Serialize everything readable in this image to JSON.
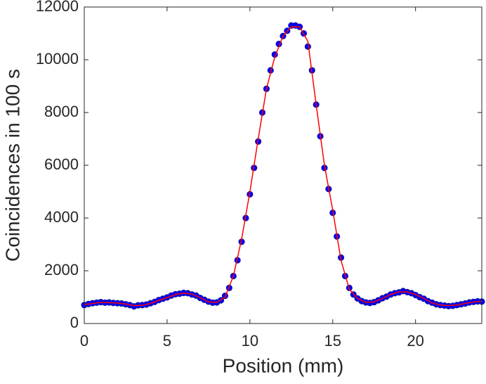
{
  "chart_data": {
    "type": "scatter",
    "xlabel": "Position (mm)",
    "ylabel": "Coincidences in 100 s",
    "xlim": [
      0,
      24
    ],
    "ylim": [
      0,
      12000
    ],
    "xticks": [
      0,
      5,
      10,
      15,
      20
    ],
    "yticks": [
      0,
      2000,
      4000,
      6000,
      8000,
      10000,
      12000
    ],
    "series": [
      {
        "type": "scatter",
        "color": "#0000ff",
        "x": [
          0,
          0.25,
          0.5,
          0.75,
          1,
          1.25,
          1.5,
          1.75,
          2,
          2.25,
          2.5,
          2.75,
          3,
          3.25,
          3.5,
          3.75,
          4,
          4.25,
          4.5,
          4.75,
          5,
          5.25,
          5.5,
          5.75,
          6,
          6.25,
          6.5,
          6.75,
          7,
          7.25,
          7.5,
          7.75,
          8,
          8.25,
          8.5,
          8.75,
          9,
          9.25,
          9.5,
          9.75,
          10,
          10.25,
          10.5,
          10.75,
          11,
          11.25,
          11.5,
          11.75,
          12,
          12.25,
          12.5,
          12.75,
          13,
          13.25,
          13.5,
          13.75,
          14,
          14.25,
          14.5,
          14.75,
          15,
          15.25,
          15.5,
          15.75,
          16,
          16.25,
          16.5,
          16.75,
          17,
          17.25,
          17.5,
          17.75,
          18,
          18.25,
          18.5,
          18.75,
          19,
          19.25,
          19.5,
          19.75,
          20,
          20.25,
          20.5,
          20.75,
          21,
          21.25,
          21.5,
          21.75,
          22,
          22.25,
          22.5,
          22.75,
          23,
          23.25,
          23.5,
          23.75,
          24
        ],
        "values": [
          700,
          740,
          770,
          790,
          810,
          790,
          800,
          780,
          770,
          760,
          730,
          700,
          650,
          690,
          700,
          720,
          770,
          820,
          890,
          940,
          990,
          1060,
          1110,
          1130,
          1160,
          1150,
          1100,
          1060,
          970,
          900,
          830,
          790,
          800,
          880,
          1050,
          1350,
          1800,
          2400,
          3100,
          4000,
          4900,
          5900,
          6900,
          8000,
          8900,
          9600,
          10200,
          10600,
          10900,
          11100,
          11300,
          11300,
          11250,
          11000,
          10500,
          9600,
          8300,
          7100,
          5900,
          5100,
          4200,
          3300,
          2500,
          1800,
          1350,
          1100,
          950,
          850,
          800,
          780,
          810,
          880,
          960,
          1020,
          1100,
          1150,
          1180,
          1230,
          1190,
          1150,
          1080,
          1000,
          940,
          850,
          790,
          730,
          700,
          680,
          660,
          670,
          700,
          730,
          760,
          800,
          820,
          840,
          830
        ]
      },
      {
        "type": "line",
        "color": "#ff0000",
        "x": [
          0,
          0.5,
          1,
          1.5,
          2,
          2.5,
          3,
          3.5,
          4,
          4.5,
          5,
          5.5,
          6,
          6.5,
          7,
          7.5,
          8,
          8.5,
          9,
          9.5,
          10,
          10.5,
          11,
          11.5,
          12,
          12.5,
          13,
          13.5,
          14,
          14.5,
          15,
          15.5,
          16,
          16.5,
          17,
          17.5,
          18,
          18.5,
          19,
          19.5,
          20,
          20.5,
          21,
          21.5,
          22,
          22.5,
          23,
          23.5,
          24
        ],
        "values": [
          720,
          760,
          800,
          790,
          780,
          740,
          680,
          690,
          760,
          880,
          980,
          1100,
          1150,
          1120,
          980,
          820,
          800,
          1000,
          1800,
          3200,
          5000,
          7000,
          8900,
          10100,
          10900,
          11250,
          11250,
          10700,
          8300,
          6000,
          4300,
          2400,
          1300,
          950,
          800,
          820,
          950,
          1100,
          1200,
          1200,
          1100,
          950,
          780,
          700,
          680,
          700,
          760,
          820,
          840
        ]
      }
    ]
  }
}
